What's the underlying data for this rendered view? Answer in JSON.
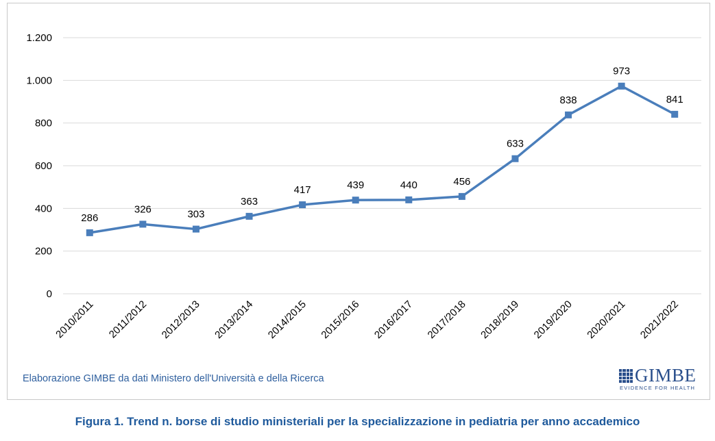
{
  "chart_data": {
    "type": "line",
    "categories": [
      "2010/2011",
      "2011/2012",
      "2012/2013",
      "2013/2014",
      "2014/2015",
      "2015/2016",
      "2016/2017",
      "2017/2018",
      "2018/2019",
      "2019/2020",
      "2020/2021",
      "2021/2022"
    ],
    "values": [
      286,
      326,
      303,
      363,
      417,
      439,
      440,
      456,
      633,
      838,
      973,
      841
    ],
    "ylim": [
      0,
      1200
    ],
    "yticks": [
      0,
      200,
      400,
      600,
      800,
      1000,
      1200
    ],
    "ytick_labels": [
      "0",
      "200",
      "400",
      "600",
      "800",
      "1.000",
      "1.200"
    ],
    "grid": true,
    "series_color": "#4a7ebb",
    "data_labels": true
  },
  "source_note": "Elaborazione GIMBE da dati Ministero dell'Università e della Ricerca",
  "logo": {
    "name": "GIMBE",
    "tagline": "EVIDENCE FOR HEALTH",
    "color": "#2a4f8c"
  },
  "caption": "Figura 1. Trend n. borse di studio ministeriali per la specializzazione in pediatria per anno accademico"
}
